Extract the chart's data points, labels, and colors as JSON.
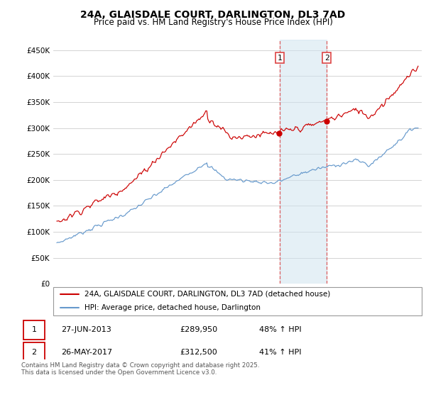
{
  "title": "24A, GLAISDALE COURT, DARLINGTON, DL3 7AD",
  "subtitle": "Price paid vs. HM Land Registry's House Price Index (HPI)",
  "ylim": [
    0,
    470000
  ],
  "yticks": [
    0,
    50000,
    100000,
    150000,
    200000,
    250000,
    300000,
    350000,
    400000,
    450000
  ],
  "ytick_labels": [
    "£0",
    "£50K",
    "£100K",
    "£150K",
    "£200K",
    "£250K",
    "£300K",
    "£350K",
    "£400K",
    "£450K"
  ],
  "house_color": "#cc0000",
  "hpi_color": "#6699cc",
  "grid_color": "#cccccc",
  "legend_label_house": "24A, GLAISDALE COURT, DARLINGTON, DL3 7AD (detached house)",
  "legend_label_hpi": "HPI: Average price, detached house, Darlington",
  "transaction1_date": "27-JUN-2013",
  "transaction1_price": 289950,
  "transaction1_hpi": "48% ↑ HPI",
  "transaction1_year": 2013.49,
  "transaction2_date": "26-MAY-2017",
  "transaction2_price": 312500,
  "transaction2_hpi": "41% ↑ HPI",
  "transaction2_year": 2017.4,
  "footer": "Contains HM Land Registry data © Crown copyright and database right 2025.\nThis data is licensed under the Open Government Licence v3.0.",
  "vline_color": "#dd4444",
  "shade_color": "#d0e4f0",
  "xlim_start": 1995,
  "xlim_end": 2025
}
